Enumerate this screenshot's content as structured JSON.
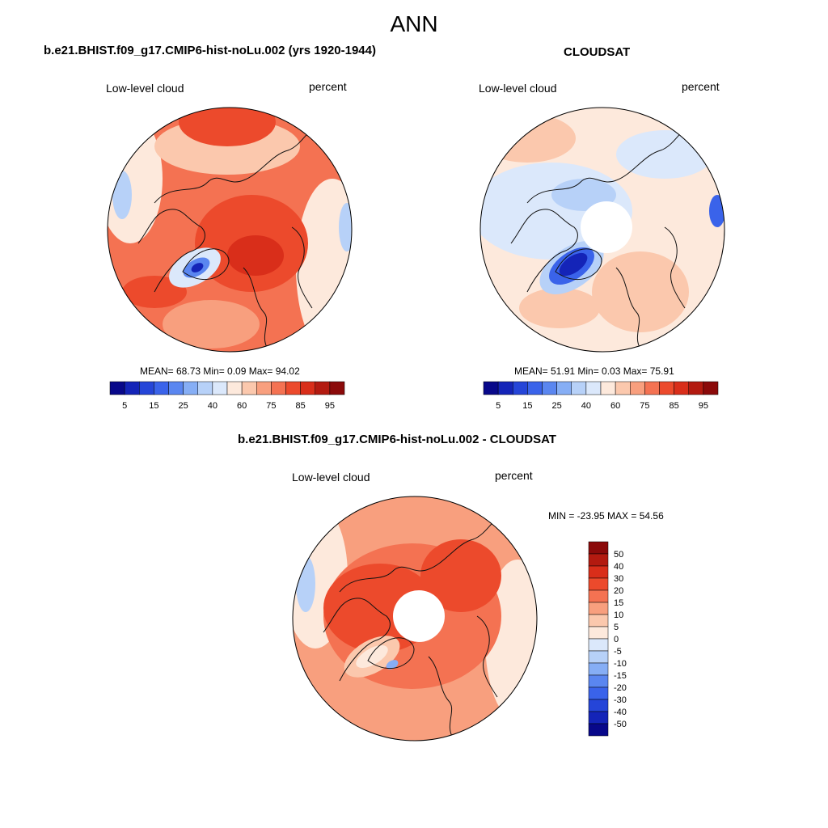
{
  "main_title": "ANN",
  "panels": {
    "model": {
      "title": "b.e21.BHIST.f09_g17.CMIP6-hist-noLu.002 (yrs 1920-1944)",
      "left_label": "Low-level cloud",
      "right_label": "percent",
      "stats": "MEAN=  68.73  Min=   0.09  Max=  94.02"
    },
    "obs": {
      "title": "CLOUDSAT",
      "left_label": "Low-level cloud",
      "right_label": "percent",
      "stats": "MEAN=  51.91  Min=   0.03  Max=  75.91"
    },
    "diff": {
      "title": "b.e21.BHIST.f09_g17.CMIP6-hist-noLu.002 - CLOUDSAT",
      "left_label": "Low-level cloud",
      "right_label": "percent",
      "stats": "MIN = -23.95 MAX =  54.56"
    }
  },
  "chart_data": [
    {
      "type": "heatmap",
      "projection": "north polar stereographic",
      "title": "b.e21.BHIST.f09_g17.CMIP6-hist-noLu.002 (yrs 1920-1944)",
      "field": "Low-level cloud",
      "units": "percent",
      "mean": 68.73,
      "min": 0.09,
      "max": 94.02,
      "colorbar_levels": [
        5,
        10,
        15,
        20,
        25,
        30,
        40,
        50,
        60,
        70,
        75,
        80,
        85,
        90,
        95
      ],
      "colorbar_tick_labels": [
        "5",
        "15",
        "25",
        "40",
        "60",
        "75",
        "85",
        "95"
      ]
    },
    {
      "type": "heatmap",
      "projection": "north polar stereographic",
      "title": "CLOUDSAT",
      "field": "Low-level cloud",
      "units": "percent",
      "mean": 51.91,
      "min": 0.03,
      "max": 75.91,
      "colorbar_levels": [
        5,
        10,
        15,
        20,
        25,
        30,
        40,
        50,
        60,
        70,
        75,
        80,
        85,
        90,
        95
      ],
      "colorbar_tick_labels": [
        "5",
        "15",
        "25",
        "40",
        "60",
        "75",
        "85",
        "95"
      ]
    },
    {
      "type": "heatmap",
      "projection": "north polar stereographic",
      "title": "b.e21.BHIST.f09_g17.CMIP6-hist-noLu.002 - CLOUDSAT",
      "field": "Low-level cloud",
      "units": "percent",
      "min": -23.95,
      "max": 54.56,
      "colorbar_levels": [
        50,
        40,
        30,
        20,
        15,
        10,
        5,
        0,
        -5,
        -10,
        -15,
        -20,
        -30,
        -40,
        -50
      ],
      "colorbar_tick_labels": [
        "50",
        "40",
        "30",
        "20",
        "15",
        "10",
        "5",
        "0",
        "-5",
        "-10",
        "-15",
        "-20",
        "-30",
        "-40",
        "-50"
      ]
    }
  ],
  "colors": {
    "seq_palette": [
      "#08088a",
      "#1424b8",
      "#2545d8",
      "#3a63ea",
      "#5a86f0",
      "#86aef5",
      "#b7d1f8",
      "#dbe8fb",
      "#fde9dc",
      "#fbc8ad",
      "#f89f7e",
      "#f47252",
      "#ec4a2c",
      "#d92e1a",
      "#b31a10",
      "#8b0a0a"
    ],
    "div_palette": [
      "#8b0a0a",
      "#b31a10",
      "#d92e1a",
      "#ec4a2c",
      "#f47252",
      "#f89f7e",
      "#fbc8ad",
      "#fde9dc",
      "#dbe8fb",
      "#b7d1f8",
      "#86aef5",
      "#5a86f0",
      "#3a63ea",
      "#2545d8",
      "#1424b8",
      "#08088a"
    ]
  }
}
